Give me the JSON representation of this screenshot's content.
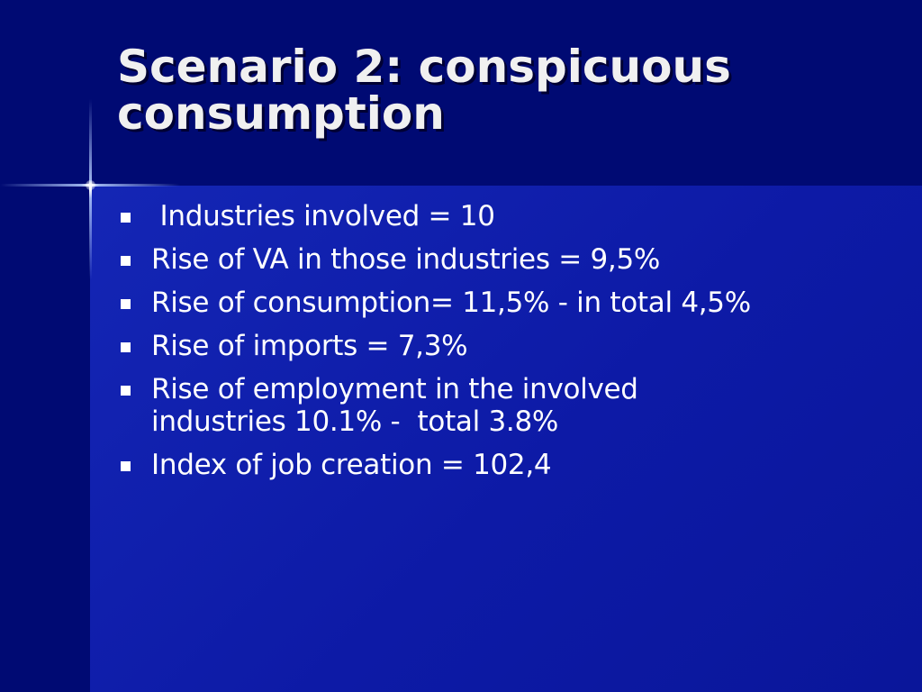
{
  "slide": {
    "title_line1": "Scenario 2: conspicuous",
    "title_line2": "consumption",
    "bullets": [
      " Industries involved = 10",
      "Rise of VA in those industries = 9,5%",
      "Rise of consumption= 11,5% - in total 4,5%",
      "Rise of imports = 7,3%",
      "Rise of employment in the involved industries 10.1% -  total 3.8%",
      "Index of job creation = 102,4"
    ],
    "bullet_icon": "square-bullet-icon"
  },
  "colors": {
    "title_band": "#000a73",
    "body_background": "#0d1aa6",
    "title_text": "#f0f0f0",
    "body_text": "#ffffff"
  }
}
